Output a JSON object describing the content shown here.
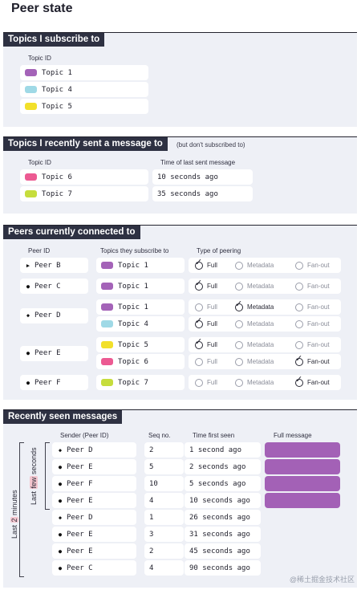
{
  "page_title": "Peer state",
  "colors": {
    "topic1": "#a463b8",
    "topic4": "#9fd9e6",
    "topic5": "#f2e02a",
    "topic6": "#ec5a92",
    "topic7": "#c6dd3c",
    "section_bg": "#eef0f6",
    "section_title_bg": "#2e3142",
    "message": "#a361b6"
  },
  "subscribed": {
    "title": "Topics I subscribe to",
    "header": "Topic ID",
    "topics": [
      {
        "label": "Topic 1",
        "color": "#a463b8"
      },
      {
        "label": "Topic 4",
        "color": "#9fd9e6"
      },
      {
        "label": "Topic 5",
        "color": "#f2e02a"
      }
    ]
  },
  "sent": {
    "title": "Topics I recently sent a message to",
    "note": "(but don't subscribed to)",
    "header_topic": "Topic ID",
    "header_time": "Time of last sent message",
    "rows": [
      {
        "topic": "Topic 6",
        "color": "#ec5a92",
        "time": "10 seconds ago"
      },
      {
        "topic": "Topic 7",
        "color": "#c6dd3c",
        "time": "35 seconds ago"
      }
    ]
  },
  "peers": {
    "title": "Peers currently connected to",
    "header_peer": "Peer ID",
    "header_topics": "Topics they subscribe to",
    "header_type": "Type of peering",
    "option_labels": [
      "Full",
      "Metadata",
      "Fan-out"
    ],
    "groups": [
      {
        "peer": "Peer B",
        "mark": "▶",
        "rows": [
          {
            "topic": "Topic 1",
            "color": "#a463b8",
            "selected": "Full"
          }
        ]
      },
      {
        "peer": "Peer C",
        "mark": "●",
        "rows": [
          {
            "topic": "Topic 1",
            "color": "#a463b8",
            "selected": "Full"
          }
        ]
      },
      {
        "peer": "Peer D",
        "mark": "◆",
        "rows": [
          {
            "topic": "Topic 1",
            "color": "#a463b8",
            "selected": "Metadata"
          },
          {
            "topic": "Topic 4",
            "color": "#9fd9e6",
            "selected": "Full"
          }
        ]
      },
      {
        "peer": "Peer E",
        "mark": "●",
        "rows": [
          {
            "topic": "Topic 5",
            "color": "#f2e02a",
            "selected": "Full"
          },
          {
            "topic": "Topic 6",
            "color": "#ec5a92",
            "selected": "Fan-out"
          }
        ]
      },
      {
        "peer": "Peer F",
        "mark": "●",
        "rows": [
          {
            "topic": "Topic 7",
            "color": "#c6dd3c",
            "selected": "Fan-out"
          }
        ]
      }
    ]
  },
  "messages": {
    "title": "Recently seen messages",
    "header_sender": "Sender (Peer ID)",
    "header_seq": "Seq no.",
    "header_time": "Time first seen",
    "header_full": "Full message",
    "label_minutes_pre": "Last",
    "label_minutes_num": "2",
    "label_minutes_post": "minutes",
    "label_seconds_pre": "Last",
    "label_seconds_num": "few",
    "label_seconds_post": "seconds",
    "rows": [
      {
        "peer": "Peer D",
        "mark": "◆",
        "seq": "2",
        "time": "1 second ago",
        "full": true
      },
      {
        "peer": "Peer E",
        "mark": "●",
        "seq": "5",
        "time": "2 seconds ago",
        "full": true
      },
      {
        "peer": "Peer F",
        "mark": "●",
        "seq": "10",
        "time": "5 seconds ago",
        "full": true
      },
      {
        "peer": "Peer E",
        "mark": "●",
        "seq": "4",
        "time": "10 seconds ago",
        "full": true
      },
      {
        "peer": "Peer D",
        "mark": "◆",
        "seq": "1",
        "time": "26 seconds ago",
        "full": false
      },
      {
        "peer": "Peer E",
        "mark": "●",
        "seq": "3",
        "time": "31 seconds ago",
        "full": false
      },
      {
        "peer": "Peer E",
        "mark": "●",
        "seq": "2",
        "time": "45 seconds ago",
        "full": false
      },
      {
        "peer": "Peer C",
        "mark": "●",
        "seq": "4",
        "time": "90 seconds ago",
        "full": false
      }
    ]
  },
  "watermark": "@稀土掘金技术社区"
}
